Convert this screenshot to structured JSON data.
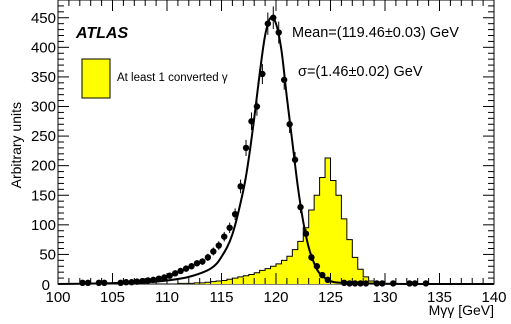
{
  "chart_data": {
    "type": "histogram",
    "xlim": [
      100,
      140
    ],
    "ylim": [
      0,
      480
    ],
    "x_ticks": [
      100,
      105,
      110,
      115,
      120,
      125,
      130,
      135,
      140
    ],
    "y_ticks": [
      50,
      100,
      150,
      200,
      250,
      300,
      350,
      400,
      450
    ],
    "xlabel": "Mγγ [GeV]",
    "ylabel": "Arbitrary units",
    "experiment_label": "ATLAS",
    "mean_label": "Mean=(119.46±0.03) GeV",
    "sigma_label": "σ=(1.46±0.02) GeV",
    "legend": [
      {
        "label": "At least 1 converted γ",
        "color": "#ffff00"
      }
    ],
    "series": [
      {
        "name": "At least 1 converted γ",
        "style": "filled-histogram",
        "color": "#ffff00",
        "bin_width": 0.5,
        "bin_start": 100,
        "values": [
          0,
          0,
          0,
          0,
          0,
          0,
          0,
          0,
          0,
          0,
          0,
          0,
          0,
          0,
          0,
          0,
          0,
          0,
          0,
          0,
          0,
          0,
          1,
          1,
          1,
          2,
          2,
          3,
          4,
          5,
          6,
          8,
          10,
          12,
          14,
          16,
          19,
          23,
          26,
          30,
          34,
          40,
          47,
          58,
          72,
          95,
          125,
          150,
          180,
          213,
          175,
          150,
          110,
          75,
          45,
          25,
          12,
          5,
          2,
          1,
          0,
          0,
          0,
          0,
          0,
          0,
          0,
          0,
          0,
          0,
          0,
          0,
          0,
          0,
          0,
          0,
          0,
          0,
          0,
          0
        ]
      },
      {
        "name": "",
        "style": "points",
        "color": "#000000",
        "x": [
          102.25,
          102.75,
          103.75,
          104.25,
          105.75,
          106.25,
          106.75,
          107.25,
          107.75,
          108.25,
          108.75,
          109.25,
          109.75,
          110.25,
          110.75,
          111.25,
          111.75,
          112.25,
          112.75,
          113.25,
          113.75,
          114.25,
          114.75,
          115.25,
          115.75,
          116.25,
          116.75,
          117.25,
          117.75,
          118.25,
          118.75,
          119.25,
          119.75,
          120.25,
          120.75,
          121.25,
          121.75,
          122.25,
          122.75,
          123.25,
          123.75,
          124.25,
          124.75,
          126.25,
          126.75,
          127.25,
          127.75,
          128.25,
          129.25,
          129.75,
          130.75,
          132.25,
          132.75,
          133.75
        ],
        "y": [
          2,
          2,
          2,
          2,
          2,
          3,
          3,
          4,
          5,
          6,
          7,
          9,
          11,
          14,
          18,
          22,
          26,
          30,
          35,
          38,
          45,
          55,
          65,
          80,
          95,
          118,
          165,
          230,
          275,
          300,
          355,
          440,
          450,
          425,
          345,
          270,
          210,
          130,
          85,
          45,
          30,
          15,
          7,
          2,
          1,
          1,
          1,
          1,
          1,
          1,
          1,
          1,
          1,
          1
        ]
      },
      {
        "name": "",
        "style": "fit-curve",
        "color": "#000000",
        "x": [
          100,
          104,
          106,
          108,
          110,
          112,
          114,
          115,
          116,
          117,
          117.5,
          118,
          118.5,
          119,
          119.5,
          120,
          120.5,
          121,
          121.5,
          122,
          122.5,
          123,
          123.5,
          124,
          125,
          126,
          128,
          132,
          140
        ],
        "y": [
          0,
          1,
          2,
          3,
          6,
          12,
          26,
          46,
          84,
          158,
          212,
          280,
          355,
          420,
          450,
          440,
          395,
          315,
          240,
          165,
          105,
          62,
          35,
          18,
          5,
          2,
          1,
          0,
          0
        ]
      }
    ]
  }
}
